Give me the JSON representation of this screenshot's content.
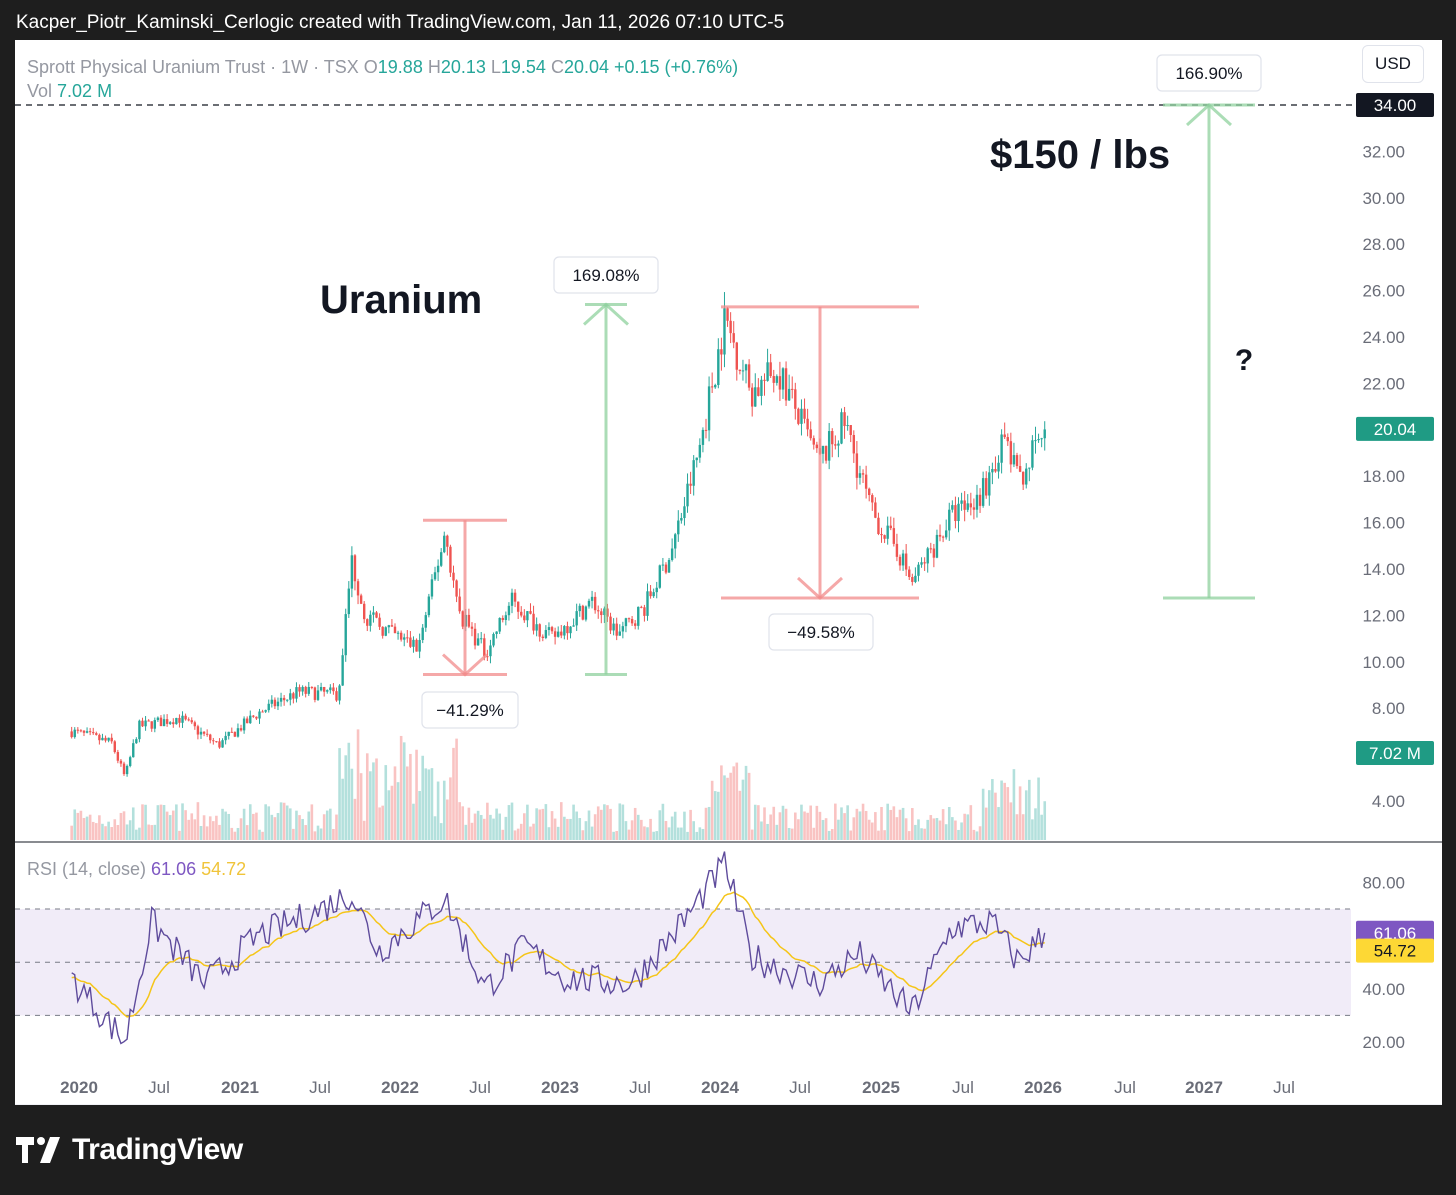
{
  "header": {
    "caption": "Kacper_Piotr_Kaminski_Cerlogic created with TradingView.com, Jan 11, 2026 07:10 UTC-5"
  },
  "legend": {
    "symbol": "Sprott Physical Uranium Trust · 1W · TSX",
    "o_label": "O",
    "o_value": "19.88",
    "h_label": "H",
    "h_value": "20.13",
    "l_label": "L",
    "l_value": "19.54",
    "c_label": "C",
    "c_value": "20.04",
    "change": "+0.15 (+0.76%)",
    "vol_label": "Vol",
    "vol_value": "7.02 M",
    "rsi_label": "RSI (14, close)",
    "rsi_value": "61.06",
    "rsi_ma_value": "54.72"
  },
  "currency_button": "USD",
  "brand": {
    "name": "TradingView"
  },
  "colors": {
    "up": "#26a69a",
    "down": "#ef5350",
    "rsi": "#7e57c2",
    "rsi_ma": "#fdd835"
  },
  "annotations": {
    "title": "Uranium",
    "target": "$150 / lbs",
    "question": "?",
    "pct_drop_1": "−41.29%",
    "pct_rise_1": "169.08%",
    "pct_drop_2": "−49.58%",
    "pct_rise_2": "166.90%"
  },
  "chart_data": [
    {
      "type": "candlestick",
      "title": "Sprott Physical Uranium Trust · 1W · TSX",
      "y_axis_ticks": [
        "4.00",
        "8.00",
        "10.00",
        "12.00",
        "14.00",
        "16.00",
        "18.00",
        "20.00",
        "22.00",
        "24.00",
        "26.00",
        "28.00",
        "30.00",
        "32.00"
      ],
      "x_axis_ticks": [
        "2020",
        "Jul",
        "2021",
        "Jul",
        "2022",
        "Jul",
        "2023",
        "Jul",
        "2024",
        "Jul",
        "2025",
        "Jul",
        "2026",
        "Jul",
        "2027",
        "Jul"
      ],
      "ylim": [
        2.5,
        35
      ],
      "last_price_label": "20.04",
      "target_price_label": "34.00",
      "volume_label": "7.02 M",
      "grid": false,
      "key_points": [
        {
          "x": "2019-12",
          "y": 7.0
        },
        {
          "x": "2020-03",
          "y": 6.5
        },
        {
          "x": "2020-04",
          "y": 5.0
        },
        {
          "x": "2020-05",
          "y": 7.2
        },
        {
          "x": "2020-08",
          "y": 7.6
        },
        {
          "x": "2020-11",
          "y": 6.4
        },
        {
          "x": "2021-02",
          "y": 7.8
        },
        {
          "x": "2021-05",
          "y": 8.7
        },
        {
          "x": "2021-08",
          "y": 8.6
        },
        {
          "x": "2021-09",
          "y": 14.4
        },
        {
          "x": "2021-10",
          "y": 12.0
        },
        {
          "x": "2021-12",
          "y": 11.2
        },
        {
          "x": "2022-02",
          "y": 10.6
        },
        {
          "x": "2022-04",
          "y": 15.6
        },
        {
          "x": "2022-05",
          "y": 12.2
        },
        {
          "x": "2022-07",
          "y": 10.4
        },
        {
          "x": "2022-09",
          "y": 12.6
        },
        {
          "x": "2022-12",
          "y": 11.0
        },
        {
          "x": "2023-03",
          "y": 12.6
        },
        {
          "x": "2023-05",
          "y": 11.2
        },
        {
          "x": "2023-07",
          "y": 12.4
        },
        {
          "x": "2023-09",
          "y": 14.8
        },
        {
          "x": "2023-11",
          "y": 19.0
        },
        {
          "x": "2024-01",
          "y": 24.8
        },
        {
          "x": "2024-03",
          "y": 21.6
        },
        {
          "x": "2024-05",
          "y": 22.6
        },
        {
          "x": "2024-08",
          "y": 18.6
        },
        {
          "x": "2024-10",
          "y": 20.3
        },
        {
          "x": "2024-12",
          "y": 16.4
        },
        {
          "x": "2025-02",
          "y": 14.8
        },
        {
          "x": "2025-03",
          "y": 13.4
        },
        {
          "x": "2025-06",
          "y": 16.3
        },
        {
          "x": "2025-08",
          "y": 17.0
        },
        {
          "x": "2025-10",
          "y": 19.6
        },
        {
          "x": "2025-11",
          "y": 17.8
        },
        {
          "x": "2026-01",
          "y": 20.04
        }
      ],
      "measurements": [
        {
          "label": "−41.29%",
          "from": 16.1,
          "to": 9.45
        },
        {
          "label": "169.08%",
          "from": 9.45,
          "to": 25.4
        },
        {
          "label": "−49.58%",
          "from": 25.3,
          "to": 12.75
        },
        {
          "label": "166.90%",
          "from": 12.75,
          "to": 34.0
        }
      ]
    },
    {
      "type": "line",
      "title": "RSI (14, close)",
      "y_axis_ticks": [
        "20.00",
        "40.00",
        "80.00"
      ],
      "ylim": [
        15,
        92
      ],
      "bands": [
        30,
        50,
        70
      ],
      "series": [
        {
          "name": "RSI",
          "last": 61.06,
          "key_points": [
            {
              "x": "2019-12",
              "y": 44
            },
            {
              "x": "2020-04",
              "y": 20
            },
            {
              "x": "2020-06",
              "y": 65
            },
            {
              "x": "2020-10",
              "y": 42
            },
            {
              "x": "2021-02",
              "y": 60
            },
            {
              "x": "2021-06",
              "y": 68
            },
            {
              "x": "2021-09",
              "y": 76
            },
            {
              "x": "2021-11",
              "y": 54
            },
            {
              "x": "2022-04",
              "y": 74
            },
            {
              "x": "2022-07",
              "y": 40
            },
            {
              "x": "2022-10",
              "y": 56
            },
            {
              "x": "2023-01",
              "y": 44
            },
            {
              "x": "2023-06",
              "y": 42
            },
            {
              "x": "2023-10",
              "y": 66
            },
            {
              "x": "2024-01",
              "y": 87
            },
            {
              "x": "2024-03",
              "y": 52
            },
            {
              "x": "2024-08",
              "y": 42
            },
            {
              "x": "2024-11",
              "y": 53
            },
            {
              "x": "2025-03",
              "y": 31
            },
            {
              "x": "2025-06",
              "y": 63
            },
            {
              "x": "2025-09",
              "y": 65
            },
            {
              "x": "2025-11",
              "y": 50
            },
            {
              "x": "2026-01",
              "y": 61.06
            }
          ]
        },
        {
          "name": "RSI-based MA",
          "last": 54.72
        }
      ]
    }
  ]
}
